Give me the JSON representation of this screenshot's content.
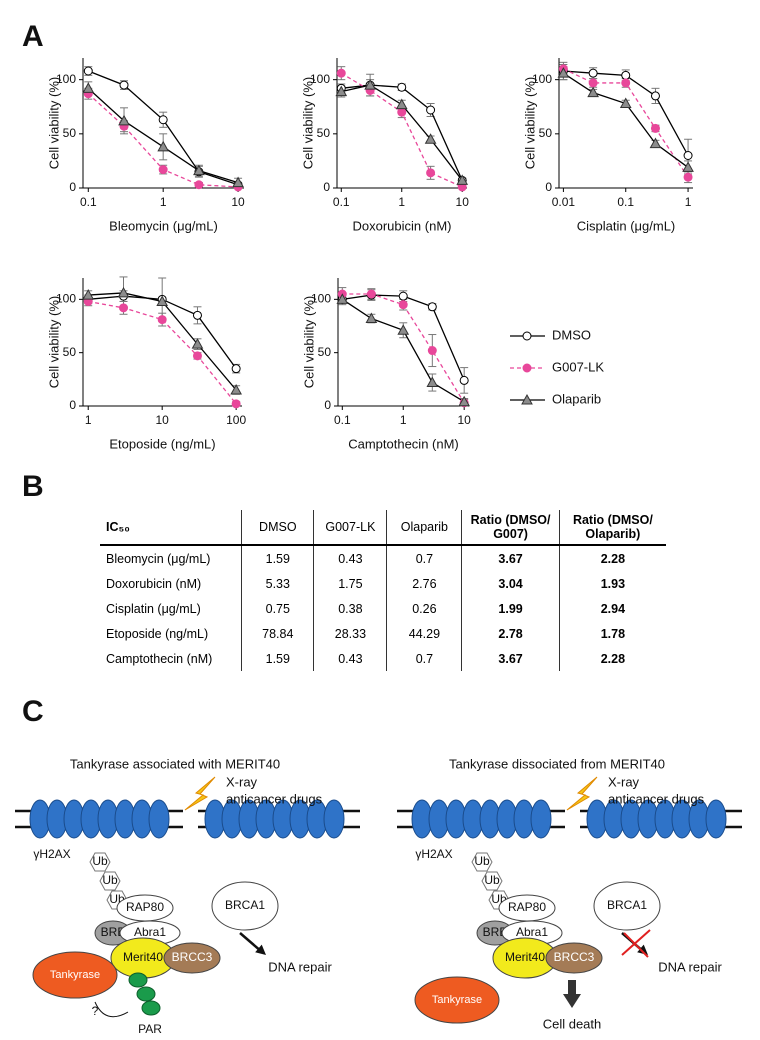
{
  "panel_labels": [
    "A",
    "B",
    "C"
  ],
  "chart_data": [
    {
      "type": "line",
      "xscale": "log",
      "xlabel": "Bleomycin (μg/mL)",
      "ylabel": "Cell viability (%)",
      "x": [
        0.1,
        0.3,
        1,
        3,
        10
      ],
      "xlim": [
        0.085,
        12
      ],
      "xticks": [
        0.1,
        1,
        10
      ],
      "ylim": [
        0,
        120
      ],
      "yticks": [
        0,
        50,
        100
      ],
      "series": [
        {
          "name": "DMSO",
          "color": "#000000",
          "marker": "circle",
          "marker_fill": "#ffffff",
          "dashed": false,
          "values": [
            108,
            95,
            63,
            15,
            3
          ],
          "errors": [
            4,
            4,
            7,
            5,
            2
          ]
        },
        {
          "name": "G007-LK",
          "color": "#e8479a",
          "marker": "circle",
          "marker_fill": "#e8479a",
          "dashed": true,
          "values": [
            87,
            57,
            17,
            3,
            1
          ],
          "errors": [
            5,
            5,
            4,
            2,
            1
          ]
        },
        {
          "name": "Olaparib",
          "color": "#000000",
          "marker": "triangle",
          "marker_fill": "#8c8c8c",
          "dashed": false,
          "values": [
            92,
            62,
            38,
            16,
            5
          ],
          "errors": [
            6,
            12,
            12,
            5,
            4
          ]
        }
      ]
    },
    {
      "type": "line",
      "xscale": "log",
      "xlabel": "Doxorubicin (nM)",
      "ylabel": "Cell viability (%)",
      "x": [
        0.1,
        0.3,
        1,
        3,
        10
      ],
      "xlim": [
        0.085,
        12
      ],
      "xticks": [
        0.1,
        1,
        10
      ],
      "ylim": [
        0,
        120
      ],
      "yticks": [
        0,
        50,
        100
      ],
      "series": [
        {
          "name": "DMSO",
          "color": "#000000",
          "marker": "circle",
          "marker_fill": "#ffffff",
          "dashed": false,
          "values": [
            92,
            95,
            93,
            72,
            7
          ],
          "errors": [
            4,
            5,
            3,
            6,
            2
          ]
        },
        {
          "name": "G007-LK",
          "color": "#e8479a",
          "marker": "circle",
          "marker_fill": "#e8479a",
          "dashed": true,
          "values": [
            106,
            90,
            70,
            14,
            1
          ],
          "errors": [
            6,
            5,
            5,
            6,
            1
          ]
        },
        {
          "name": "Olaparib",
          "color": "#000000",
          "marker": "triangle",
          "marker_fill": "#8c8c8c",
          "dashed": false,
          "values": [
            89,
            95,
            77,
            45,
            7
          ],
          "errors": [
            5,
            10,
            4,
            3,
            2
          ]
        }
      ]
    },
    {
      "type": "line",
      "xscale": "log",
      "xlabel": "Cisplatin (μg/mL)",
      "ylabel": "Cell viability (%)",
      "x": [
        0.01,
        0.03,
        0.1,
        0.3,
        1
      ],
      "xlim": [
        0.0085,
        1.2
      ],
      "xticks": [
        0.01,
        0.1,
        1
      ],
      "ylim": [
        0,
        120
      ],
      "yticks": [
        0,
        50,
        100
      ],
      "series": [
        {
          "name": "DMSO",
          "color": "#000000",
          "marker": "circle",
          "marker_fill": "#ffffff",
          "dashed": false,
          "values": [
            108,
            106,
            104,
            85,
            30
          ],
          "errors": [
            8,
            5,
            5,
            7,
            15
          ]
        },
        {
          "name": "G007-LK",
          "color": "#e8479a",
          "marker": "circle",
          "marker_fill": "#e8479a",
          "dashed": true,
          "values": [
            110,
            97,
            97,
            55,
            10
          ],
          "errors": [
            4,
            4,
            4,
            3,
            5
          ]
        },
        {
          "name": "Olaparib",
          "color": "#000000",
          "marker": "triangle",
          "marker_fill": "#8c8c8c",
          "dashed": false,
          "values": [
            106,
            88,
            78,
            41,
            19
          ],
          "errors": [
            6,
            3,
            3,
            3,
            6
          ]
        }
      ]
    },
    {
      "type": "line",
      "xscale": "log",
      "xlabel": "Etoposide (ng/mL)",
      "ylabel": "Cell viability (%)",
      "x": [
        1,
        3,
        10,
        30,
        100
      ],
      "xlim": [
        0.85,
        120
      ],
      "xticks": [
        1,
        10,
        100
      ],
      "ylim": [
        0,
        120
      ],
      "yticks": [
        0,
        50,
        100
      ],
      "series": [
        {
          "name": "DMSO",
          "color": "#000000",
          "marker": "circle",
          "marker_fill": "#ffffff",
          "dashed": false,
          "values": [
            100,
            103,
            100,
            85,
            35
          ],
          "errors": [
            4,
            5,
            20,
            8,
            4
          ]
        },
        {
          "name": "G007-LK",
          "color": "#e8479a",
          "marker": "circle",
          "marker_fill": "#e8479a",
          "dashed": true,
          "values": [
            98,
            92,
            81,
            47,
            2
          ],
          "errors": [
            4,
            6,
            6,
            3,
            2
          ]
        },
        {
          "name": "Olaparib",
          "color": "#000000",
          "marker": "triangle",
          "marker_fill": "#8c8c8c",
          "dashed": false,
          "values": [
            104,
            106,
            98,
            58,
            15
          ],
          "errors": [
            4,
            15,
            3,
            5,
            4
          ]
        }
      ]
    },
    {
      "type": "line",
      "xscale": "log",
      "xlabel": "Camptothecin (nM)",
      "ylabel": "Cell viability (%)",
      "x": [
        0.1,
        0.3,
        1,
        3,
        10
      ],
      "xlim": [
        0.085,
        12
      ],
      "xticks": [
        0.1,
        1,
        10
      ],
      "ylim": [
        0,
        120
      ],
      "yticks": [
        0,
        50,
        100
      ],
      "series": [
        {
          "name": "DMSO",
          "color": "#000000",
          "marker": "circle",
          "marker_fill": "#ffffff",
          "dashed": false,
          "values": [
            100,
            104,
            103,
            93,
            24
          ],
          "errors": [
            5,
            5,
            5,
            3,
            12
          ]
        },
        {
          "name": "G007-LK",
          "color": "#e8479a",
          "marker": "circle",
          "marker_fill": "#e8479a",
          "dashed": true,
          "values": [
            105,
            105,
            95,
            52,
            3
          ],
          "errors": [
            6,
            5,
            5,
            15,
            3
          ]
        },
        {
          "name": "Olaparib",
          "color": "#000000",
          "marker": "triangle",
          "marker_fill": "#8c8c8c",
          "dashed": false,
          "values": [
            100,
            82,
            71,
            22,
            4
          ],
          "errors": [
            3,
            4,
            7,
            8,
            3
          ]
        }
      ]
    }
  ],
  "table": {
    "header": [
      "IC₅₀",
      "DMSO",
      "G007-LK",
      "Olaparib",
      "Ratio (DMSO/ G007)",
      "Ratio (DMSO/ Olaparib)"
    ],
    "rows": [
      [
        "Bleomycin (μg/mL)",
        1.59,
        0.43,
        0.7,
        3.67,
        2.28
      ],
      [
        "Doxorubicin (nM)",
        5.33,
        1.75,
        2.76,
        3.04,
        1.93
      ],
      [
        "Cisplatin (μg/mL)",
        0.75,
        0.38,
        0.26,
        1.99,
        2.94
      ],
      [
        "Etoposide (ng/mL)",
        78.84,
        28.33,
        44.29,
        2.78,
        1.78
      ],
      [
        "Camptothecin (nM)",
        1.59,
        0.43,
        0.7,
        3.67,
        2.28
      ]
    ]
  },
  "diagram": {
    "left": {
      "title": "Tankyrase associated with MERIT40",
      "stimulus": [
        "X-ray",
        "anticancer drugs"
      ],
      "histone": "γH2AX",
      "ubiquitin": [
        "Ub",
        "Ub",
        "Ub"
      ],
      "proteins": [
        "RAP80",
        "BRCA1",
        "BRE",
        "Abra1",
        "Merit40",
        "BRCC3",
        "Tankyrase"
      ],
      "polymer": "PAR",
      "question": "?",
      "outcome": "DNA repair"
    },
    "right": {
      "title": "Tankyrase dissociated from MERIT40",
      "stimulus": [
        "X-ray",
        "anticancer drugs"
      ],
      "histone": "γH2AX",
      "ubiquitin": [
        "Ub",
        "Ub",
        "Ub"
      ],
      "proteins": [
        "RAP80",
        "BRCA1",
        "BRE",
        "Abra1",
        "Merit40",
        "BRCC3",
        "Tankyrase"
      ],
      "outcomes": [
        "DNA repair",
        "Cell death"
      ]
    }
  }
}
